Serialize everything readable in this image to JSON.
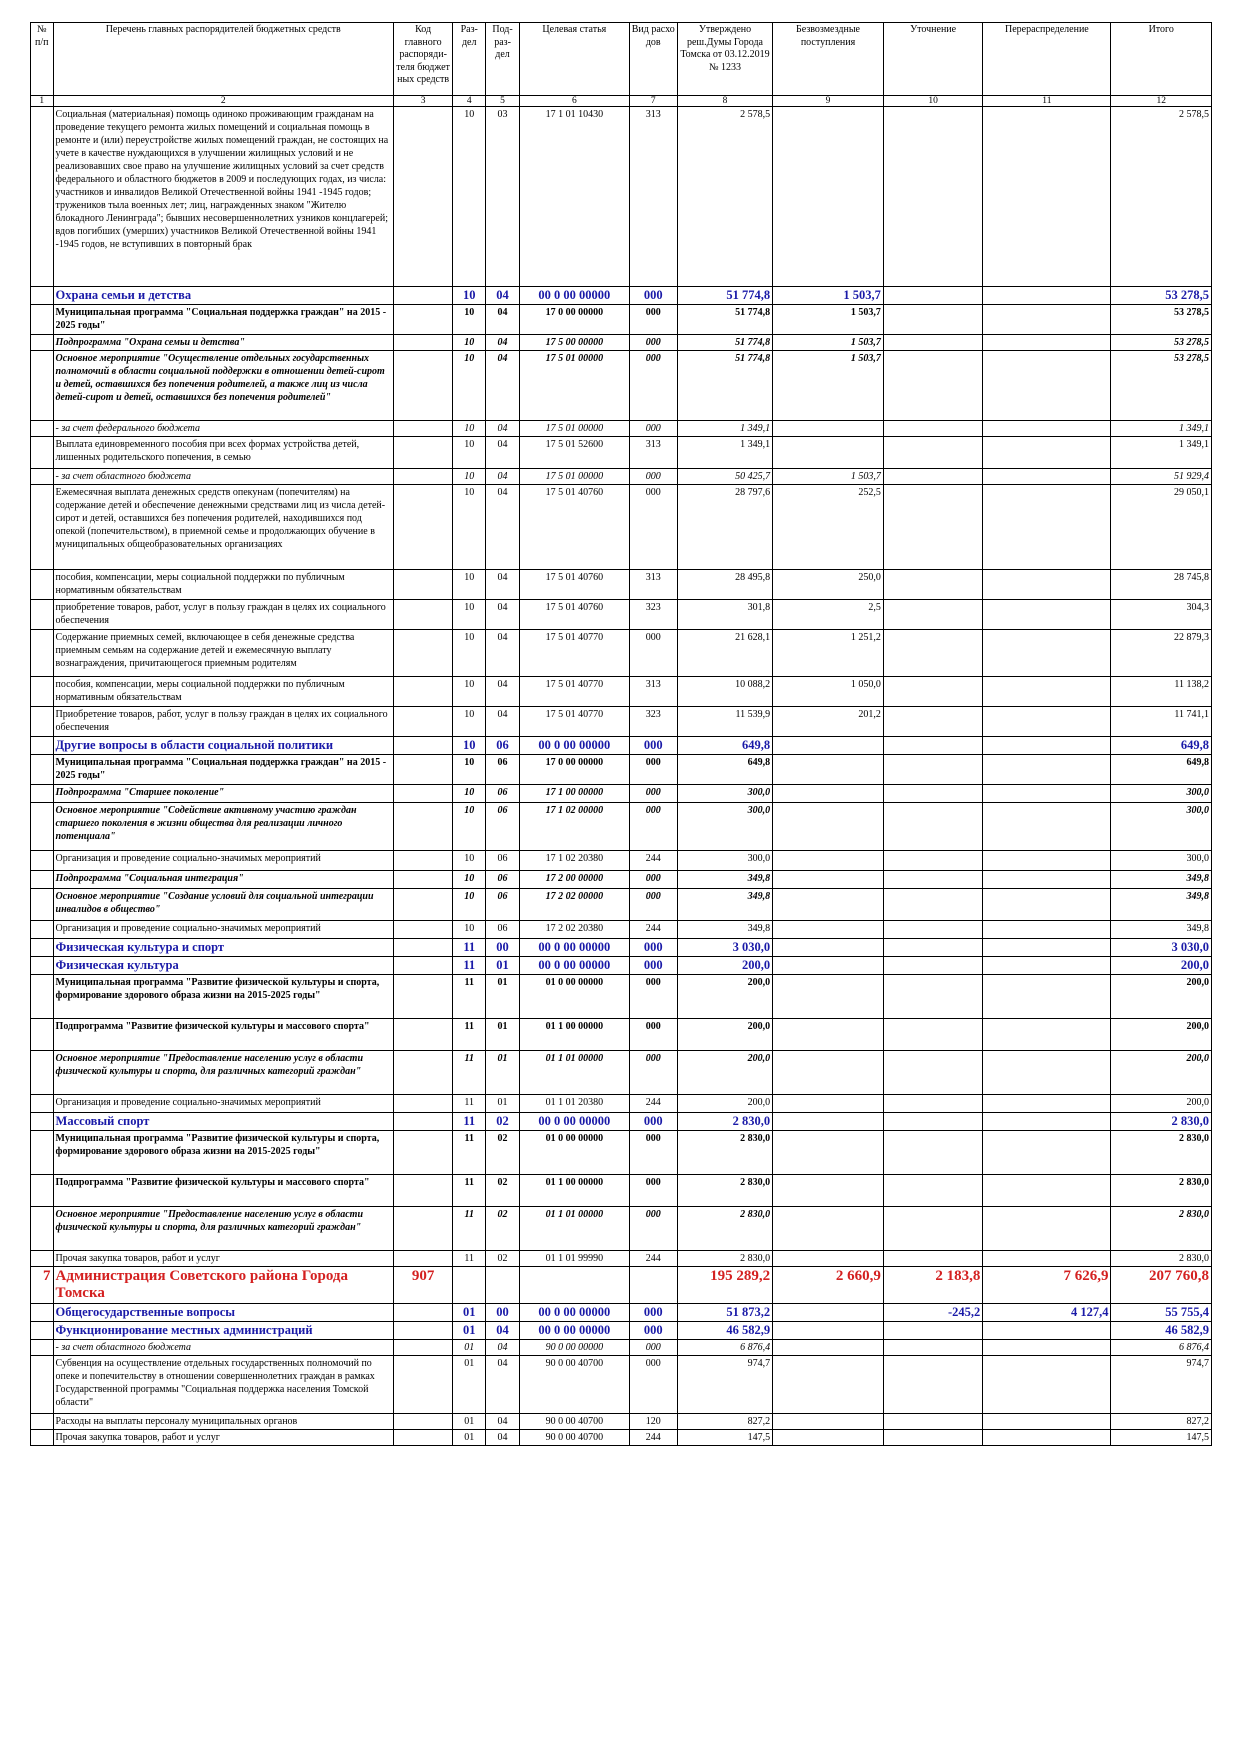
{
  "header": {
    "c1": "№ п/п",
    "c2": "Перечень главных распорядителей бюджетных средств",
    "c3": "Код главного распоряди-теля бюджет ных средств",
    "c4": "Раз-дел",
    "c5": "Под-раз-дел",
    "c6": "Целевая статья",
    "c7": "Вид расхо дов",
    "c8": "Утверждено реш.Думы Города Томска от 03.12.2019 № 1233",
    "c9": "Безвозмездные поступления",
    "c10": "Уточнение",
    "c11": "Перераспределение",
    "c12": "Итого"
  },
  "colnums": [
    "1",
    "2",
    "3",
    "4",
    "5",
    "6",
    "7",
    "8",
    "9",
    "10",
    "11",
    "12"
  ],
  "rows": [
    {
      "style": "plain",
      "no": "",
      "name": "Социальная (материальная) помощь одиноко проживающим гражданам на проведение текущего ремонта жилых помещений и социальная помощь в ремонте и (или) переустройстве жилых помещений граждан, не состоящих на учете в качестве нуждающихся в улучшении жилищных условий и не реализовавших свое право на улучшение жилищных условий за счет средств федерального и областного бюджетов в 2009 и последующих годах, из числа: участников и инвалидов Великой Отечественной войны 1941 -1945 годов; тружеников тыла военных лет; лиц, награжденных знаком \"Жителю блокадного Ленинграда\"; бывших несовершеннолетних узников концлагерей; вдов погибших (умерших) участников Великой Отечественной войны 1941 -1945 годов, не вступивших в повторный брак",
      "code": "",
      "razd": "10",
      "podr": "03",
      "cs": "17 1 01 10430",
      "vr": "313",
      "v8": "2 578,5",
      "v9": "",
      "v10": "",
      "v11": "",
      "v12": "2 578,5",
      "h": 180
    },
    {
      "style": "sec",
      "no": "",
      "name": "Охрана семьи и детства",
      "code": "",
      "razd": "10",
      "podr": "04",
      "cs": "00 0 00 00000",
      "vr": "000",
      "v8": "51 774,8",
      "v9": "1 503,7",
      "v10": "",
      "v11": "",
      "v12": "53 278,5",
      "h": 18
    },
    {
      "style": "prog",
      "no": "",
      "name": "Муниципальная программа \"Социальная поддержка граждан\" на 2015 - 2025 годы\"",
      "code": "",
      "razd": "10",
      "podr": "04",
      "cs": "17 0 00 00000",
      "vr": "000",
      "v8": "51 774,8",
      "v9": "1 503,7",
      "v10": "",
      "v11": "",
      "v12": "53 278,5",
      "h": 30
    },
    {
      "style": "sub",
      "no": "",
      "name": "Подпрограмма \"Охрана семьи и детства\"",
      "code": "",
      "razd": "10",
      "podr": "04",
      "cs": "17 5 00 00000",
      "vr": "000",
      "v8": "51 774,8",
      "v9": "1 503,7",
      "v10": "",
      "v11": "",
      "v12": "53 278,5",
      "h": 16
    },
    {
      "style": "sub",
      "no": "",
      "name": "Основное мероприятие \"Осуществление отдельных государственных полномочий в области социальной поддержки в отношении детей-сирот и детей, оставшихся без попечения родителей, а также лиц из числа детей-сирот и детей, оставшихся без попечения родителей\"",
      "code": "",
      "razd": "10",
      "podr": "04",
      "cs": "17 5 01 00000",
      "vr": "000",
      "v8": "51 774,8",
      "v9": "1 503,7",
      "v10": "",
      "v11": "",
      "v12": "53 278,5",
      "h": 70
    },
    {
      "style": "src",
      "no": "",
      "name": "- за счет федерального бюджета",
      "code": "",
      "razd": "10",
      "podr": "04",
      "cs": "17 5 01 00000",
      "vr": "000",
      "v8": "1 349,1",
      "v9": "",
      "v10": "",
      "v11": "",
      "v12": "1 349,1",
      "h": 15
    },
    {
      "style": "plain",
      "no": "",
      "name": "Выплата единовременного пособия при всех формах устройства детей, лишенных родительского попечения, в семью",
      "code": "",
      "razd": "10",
      "podr": "04",
      "cs": "17 5 01 52600",
      "vr": "313",
      "v8": "1 349,1",
      "v9": "",
      "v10": "",
      "v11": "",
      "v12": "1 349,1",
      "h": 32
    },
    {
      "style": "src",
      "no": "",
      "name": "- за счет областного бюджета",
      "code": "",
      "razd": "10",
      "podr": "04",
      "cs": "17 5 01 00000",
      "vr": "000",
      "v8": "50 425,7",
      "v9": "1 503,7",
      "v10": "",
      "v11": "",
      "v12": "51 929,4",
      "h": 15
    },
    {
      "style": "plain",
      "no": "",
      "name": "Ежемесячная выплата денежных средств опекунам (попечителям) на содержание детей и обеспечение денежными средствами лиц из числа детей-сирот и детей, оставшихся без попечения родителей, находившихся под опекой (попечительством), в приемной семье и продолжающих обучение в муниципальных общеобразовательных организациях",
      "code": "",
      "razd": "10",
      "podr": "04",
      "cs": "17 5 01 40760",
      "vr": "000",
      "v8": "28 797,6",
      "v9": "252,5",
      "v10": "",
      "v11": "",
      "v12": "29 050,1",
      "h": 85
    },
    {
      "style": "plain",
      "no": "",
      "name": "   пособия, компенсации, меры социальной поддержки по публичным нормативным обязательствам",
      "code": "",
      "razd": "10",
      "podr": "04",
      "cs": "17 5 01 40760",
      "vr": "313",
      "v8": "28 495,8",
      "v9": "250,0",
      "v10": "",
      "v11": "",
      "v12": "28 745,8",
      "h": 30
    },
    {
      "style": "plain",
      "no": "",
      "name": "   приобретение товаров, работ, услуг в пользу граждан в целях их социального обеспечения",
      "code": "",
      "razd": "10",
      "podr": "04",
      "cs": "17 5 01 40760",
      "vr": "323",
      "v8": "301,8",
      "v9": "2,5",
      "v10": "",
      "v11": "",
      "v12": "304,3",
      "h": 30
    },
    {
      "style": "plain",
      "no": "",
      "name": "Содержание приемных семей, включающее в себя денежные средства приемным семьям на содержание детей и ежемесячную выплату вознаграждения, причитающегося приемным родителям",
      "code": "",
      "razd": "10",
      "podr": "04",
      "cs": "17 5 01 40770",
      "vr": "000",
      "v8": "21 628,1",
      "v9": "1 251,2",
      "v10": "",
      "v11": "",
      "v12": "22 879,3",
      "h": 47
    },
    {
      "style": "plain",
      "no": "",
      "name": "   пособия, компенсации, меры социальной поддержки по публичным нормативным обязательствам",
      "code": "",
      "razd": "10",
      "podr": "04",
      "cs": "17 5 01 40770",
      "vr": "313",
      "v8": "10 088,2",
      "v9": "1 050,0",
      "v10": "",
      "v11": "",
      "v12": "11 138,2",
      "h": 30
    },
    {
      "style": "plain",
      "no": "",
      "name": "   Приобретение товаров, работ, услуг в пользу граждан в целях их социального обеспечения",
      "code": "",
      "razd": "10",
      "podr": "04",
      "cs": "17 5 01 40770",
      "vr": "323",
      "v8": "11 539,9",
      "v9": "201,2",
      "v10": "",
      "v11": "",
      "v12": "11 741,1",
      "h": 30
    },
    {
      "style": "sec",
      "no": "",
      "name": "Другие вопросы в области социальной политики",
      "code": "",
      "razd": "10",
      "podr": "06",
      "cs": "00 0 00 00000",
      "vr": "000",
      "v8": "649,8",
      "v9": "",
      "v10": "",
      "v11": "",
      "v12": "649,8",
      "h": 16
    },
    {
      "style": "prog",
      "no": "",
      "name": "Муниципальная программа \"Социальная поддержка граждан\" на 2015 - 2025 годы\"",
      "code": "",
      "razd": "10",
      "podr": "06",
      "cs": "17 0 00 00000",
      "vr": "000",
      "v8": "649,8",
      "v9": "",
      "v10": "",
      "v11": "",
      "v12": "649,8",
      "h": 30
    },
    {
      "style": "sub",
      "no": "",
      "name": "Подпрограмма \"Старшее поколение\"",
      "code": "",
      "razd": "10",
      "podr": "06",
      "cs": "17 1 00 00000",
      "vr": "000",
      "v8": "300,0",
      "v9": "",
      "v10": "",
      "v11": "",
      "v12": "300,0",
      "h": 18
    },
    {
      "style": "sub",
      "no": "",
      "name": "Основное мероприятие \"Содействие активному участию граждан старшего поколения в жизни общества для реализации личного потенциала\"",
      "code": "",
      "razd": "10",
      "podr": "06",
      "cs": "17 1 02 00000",
      "vr": "000",
      "v8": "300,0",
      "v9": "",
      "v10": "",
      "v11": "",
      "v12": "300,0",
      "h": 48
    },
    {
      "style": "plain",
      "no": "",
      "name": "Организация и проведение социально-значимых мероприятий",
      "code": "",
      "razd": "10",
      "podr": "06",
      "cs": "17 1 02 20380",
      "vr": "244",
      "v8": "300,0",
      "v9": "",
      "v10": "",
      "v11": "",
      "v12": "300,0",
      "h": 20
    },
    {
      "style": "sub",
      "no": "",
      "name": "Подпрограмма \"Социальная интеграция\"",
      "code": "",
      "razd": "10",
      "podr": "06",
      "cs": "17 2 00 00000",
      "vr": "000",
      "v8": "349,8",
      "v9": "",
      "v10": "",
      "v11": "",
      "v12": "349,8",
      "h": 18
    },
    {
      "style": "sub",
      "no": "",
      "name": "Основное мероприятие \"Создание условий для социальной интеграции инвалидов в общество\"",
      "code": "",
      "razd": "10",
      "podr": "06",
      "cs": "17 2 02 00000",
      "vr": "000",
      "v8": "349,8",
      "v9": "",
      "v10": "",
      "v11": "",
      "v12": "349,8",
      "h": 32
    },
    {
      "style": "plain",
      "no": "",
      "name": "Организация и проведение социально-значимых мероприятий",
      "code": "",
      "razd": "10",
      "podr": "06",
      "cs": "17 2 02 20380",
      "vr": "244",
      "v8": "349,8",
      "v9": "",
      "v10": "",
      "v11": "",
      "v12": "349,8",
      "h": 18
    },
    {
      "style": "sec",
      "no": "",
      "name": "Физическая культура и спорт",
      "code": "",
      "razd": "11",
      "podr": "00",
      "cs": "00 0 00 00000",
      "vr": "000",
      "v8": "3 030,0",
      "v9": "",
      "v10": "",
      "v11": "",
      "v12": "3 030,0",
      "h": 16
    },
    {
      "style": "sec",
      "no": "",
      "name": "Физическая культура",
      "code": "",
      "razd": "11",
      "podr": "01",
      "cs": "00 0 00 00000",
      "vr": "000",
      "v8": "200,0",
      "v9": "",
      "v10": "",
      "v11": "",
      "v12": "200,0",
      "h": 16
    },
    {
      "style": "prog",
      "no": "",
      "name": "Муниципальная программа \"Развитие физической культуры и спорта, формирование здорового образа жизни на 2015-2025 годы\"",
      "code": "",
      "razd": "11",
      "podr": "01",
      "cs": "01 0 00 00000",
      "vr": "000",
      "v8": "200,0",
      "v9": "",
      "v10": "",
      "v11": "",
      "v12": "200,0",
      "h": 44
    },
    {
      "style": "prog",
      "no": "",
      "name": "Подпрограмма \"Развитие физической культуры и массового спорта\"",
      "code": "",
      "razd": "11",
      "podr": "01",
      "cs": "01 1 00 00000",
      "vr": "000",
      "v8": "200,0",
      "v9": "",
      "v10": "",
      "v11": "",
      "v12": "200,0",
      "h": 32
    },
    {
      "style": "sub",
      "no": "",
      "name": "Основное мероприятие \"Предоставление населению услуг в области физической культуры и спорта, для различных категорий граждан\"",
      "code": "",
      "razd": "11",
      "podr": "01",
      "cs": "01 1 01 00000",
      "vr": "000",
      "v8": "200,0",
      "v9": "",
      "v10": "",
      "v11": "",
      "v12": "200,0",
      "h": 44
    },
    {
      "style": "plain",
      "no": "",
      "name": "Организация и проведение социально-значимых мероприятий",
      "code": "",
      "razd": "11",
      "podr": "01",
      "cs": "01 1 01 20380",
      "vr": "244",
      "v8": "200,0",
      "v9": "",
      "v10": "",
      "v11": "",
      "v12": "200,0",
      "h": 18
    },
    {
      "style": "sec",
      "no": "",
      "name": "Массовый спорт",
      "code": "",
      "razd": "11",
      "podr": "02",
      "cs": "00 0 00 00000",
      "vr": "000",
      "v8": "2 830,0",
      "v9": "",
      "v10": "",
      "v11": "",
      "v12": "2 830,0",
      "h": 16
    },
    {
      "style": "prog",
      "no": "",
      "name": "Муниципальная программа \"Развитие физической культуры и спорта, формирование здорового образа жизни на 2015-2025 годы\"",
      "code": "",
      "razd": "11",
      "podr": "02",
      "cs": "01 0 00 00000",
      "vr": "000",
      "v8": "2 830,0",
      "v9": "",
      "v10": "",
      "v11": "",
      "v12": "2 830,0",
      "h": 44
    },
    {
      "style": "prog",
      "no": "",
      "name": "Подпрограмма \"Развитие физической культуры и массового спорта\"",
      "code": "",
      "razd": "11",
      "podr": "02",
      "cs": "01 1 00 00000",
      "vr": "000",
      "v8": "2 830,0",
      "v9": "",
      "v10": "",
      "v11": "",
      "v12": "2 830,0",
      "h": 32
    },
    {
      "style": "sub",
      "no": "",
      "name": "Основное мероприятие \"Предоставление населению услуг в области физической культуры и спорта, для различных категорий граждан\"",
      "code": "",
      "razd": "11",
      "podr": "02",
      "cs": "01 1 01 00000",
      "vr": "000",
      "v8": "2 830,0",
      "v9": "",
      "v10": "",
      "v11": "",
      "v12": "2 830,0",
      "h": 44
    },
    {
      "style": "plain",
      "no": "",
      "name": "Прочая закупка товаров, работ и услуг",
      "code": "",
      "razd": "11",
      "podr": "02",
      "cs": "01 1 01 99990",
      "vr": "244",
      "v8": "2 830,0",
      "v9": "",
      "v10": "",
      "v11": "",
      "v12": "2 830,0",
      "h": 15
    },
    {
      "style": "admin",
      "no": "7",
      "name": "Администрация Советского района Города Томска",
      "code": "907",
      "razd": "",
      "podr": "",
      "cs": "",
      "vr": "",
      "v8": "195 289,2",
      "v9": "2 660,9",
      "v10": "2 183,8",
      "v11": "7 626,9",
      "v12": "207 760,8",
      "h": 36
    },
    {
      "style": "sec",
      "no": "",
      "name": "Общегосударственные вопросы",
      "code": "",
      "razd": "01",
      "podr": "00",
      "cs": "00 0 00 00000",
      "vr": "000",
      "v8": "51 873,2",
      "v9": "",
      "v10": "-245,2",
      "v11": "4 127,4",
      "v12": "55 755,4",
      "h": 18
    },
    {
      "style": "sec",
      "no": "",
      "name": "Функционирование местных администраций",
      "code": "",
      "razd": "01",
      "podr": "04",
      "cs": "00 0 00 00000",
      "vr": "000",
      "v8": "46 582,9",
      "v9": "",
      "v10": "",
      "v11": "",
      "v12": "46 582,9",
      "h": 18
    },
    {
      "style": "src",
      "no": "",
      "name": "- за счет областного бюджета",
      "code": "",
      "razd": "01",
      "podr": "04",
      "cs": "90 0 00 00000",
      "vr": "000",
      "v8": "6 876,4",
      "v9": "",
      "v10": "",
      "v11": "",
      "v12": "6 876,4",
      "h": 15
    },
    {
      "style": "plain",
      "no": "",
      "name": "Субвенция на осуществление отдельных государственных полномочий по опеке и попечительству в отношении совершеннолетних граждан в рамках Государственной программы \"Социальная поддержка населения Томской области\"",
      "code": "",
      "razd": "01",
      "podr": "04",
      "cs": "90 0 00 40700",
      "vr": "000",
      "v8": "974,7",
      "v9": "",
      "v10": "",
      "v11": "",
      "v12": "974,7",
      "h": 58
    },
    {
      "style": "plain",
      "no": "",
      "name": "   Расходы на выплаты персоналу муниципальных органов",
      "code": "",
      "razd": "01",
      "podr": "04",
      "cs": "90 0 00 40700",
      "vr": "120",
      "v8": "827,2",
      "v9": "",
      "v10": "",
      "v11": "",
      "v12": "827,2",
      "h": 15
    },
    {
      "style": "plain",
      "no": "",
      "name": "   Прочая закупка товаров, работ и услуг",
      "code": "",
      "razd": "01",
      "podr": "04",
      "cs": "90 0 00 40700",
      "vr": "244",
      "v8": "147,5",
      "v9": "",
      "v10": "",
      "v11": "",
      "v12": "147,5",
      "h": 15
    }
  ]
}
